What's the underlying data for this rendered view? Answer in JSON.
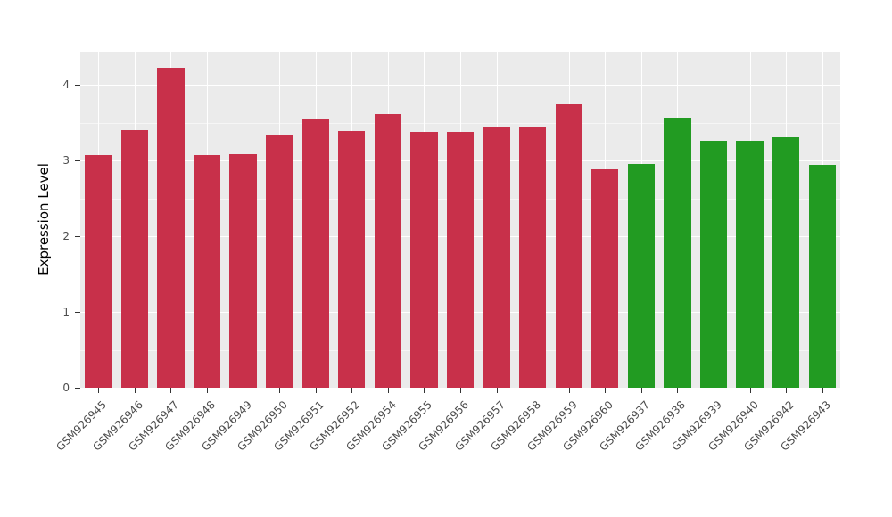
{
  "chart_data": {
    "type": "bar",
    "title": "",
    "xlabel": "",
    "ylabel": "Expression Level",
    "ylim": [
      0,
      4.44
    ],
    "yticks": [
      0,
      1,
      2,
      3,
      4
    ],
    "minor_step": 0.5,
    "grid": true,
    "legend_position": "none",
    "plot_background": "#EBEBEB",
    "bar_width_ratio": 0.75,
    "categories": [
      "GSM926945",
      "GSM926946",
      "GSM926947",
      "GSM926948",
      "GSM926949",
      "GSM926950",
      "GSM926951",
      "GSM926952",
      "GSM926954",
      "GSM926955",
      "GSM926956",
      "GSM926957",
      "GSM926958",
      "GSM926959",
      "GSM926960",
      "GSM926937",
      "GSM926938",
      "GSM926939",
      "GSM926940",
      "GSM926942",
      "GSM926943"
    ],
    "values": [
      3.07,
      3.4,
      4.23,
      3.07,
      3.09,
      3.35,
      3.54,
      3.39,
      3.62,
      3.38,
      3.38,
      3.45,
      3.44,
      3.75,
      2.89,
      2.96,
      3.57,
      3.26,
      3.26,
      3.31,
      2.95
    ],
    "colors": [
      "#C8304A",
      "#C8304A",
      "#C8304A",
      "#C8304A",
      "#C8304A",
      "#C8304A",
      "#C8304A",
      "#C8304A",
      "#C8304A",
      "#C8304A",
      "#C8304A",
      "#C8304A",
      "#C8304A",
      "#C8304A",
      "#C8304A",
      "#229B22",
      "#229B22",
      "#229B22",
      "#229B22",
      "#229B22",
      "#229B22"
    ],
    "palette": {
      "group1_red": "#C8304A",
      "group2_green": "#229B22"
    }
  }
}
